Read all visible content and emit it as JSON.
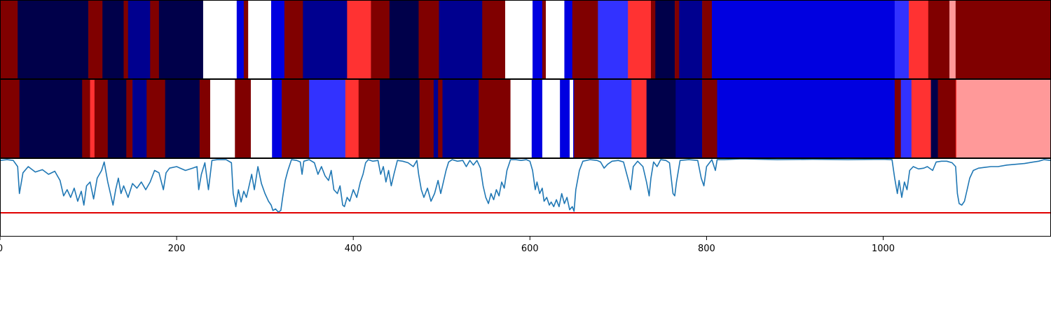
{
  "chart_data": [
    {
      "type": "heatmap",
      "name": "state-strip-top",
      "xlim": [
        0,
        1190
      ],
      "colors": {
        "white": "#ffffff",
        "navy": "#00004a",
        "darkblue": "#00008f",
        "blue": "#0000e0",
        "lightblue": "#3232ff",
        "red": "#ff3232",
        "darkred": "#800000",
        "pink": "#ff9999"
      },
      "segments": [
        [
          0,
          20,
          "darkred"
        ],
        [
          20,
          100,
          "navy"
        ],
        [
          100,
          116,
          "darkred"
        ],
        [
          116,
          140,
          "navy"
        ],
        [
          140,
          145,
          "darkred"
        ],
        [
          145,
          170,
          "darkblue"
        ],
        [
          170,
          180,
          "darkred"
        ],
        [
          180,
          230,
          "navy"
        ],
        [
          230,
          268,
          "white"
        ],
        [
          268,
          276,
          "blue"
        ],
        [
          276,
          281,
          "darkred"
        ],
        [
          281,
          307,
          "white"
        ],
        [
          307,
          322,
          "blue"
        ],
        [
          322,
          343,
          "darkred"
        ],
        [
          343,
          393,
          "darkblue"
        ],
        [
          393,
          420,
          "red"
        ],
        [
          420,
          441,
          "darkred"
        ],
        [
          441,
          474,
          "navy"
        ],
        [
          474,
          497,
          "darkred"
        ],
        [
          497,
          546,
          "darkblue"
        ],
        [
          546,
          572,
          "darkred"
        ],
        [
          572,
          603,
          "white"
        ],
        [
          603,
          614,
          "blue"
        ],
        [
          614,
          618,
          "darkred"
        ],
        [
          618,
          639,
          "white"
        ],
        [
          639,
          648,
          "blue"
        ],
        [
          648,
          677,
          "darkred"
        ],
        [
          677,
          711,
          "lightblue"
        ],
        [
          711,
          737,
          "red"
        ],
        [
          737,
          742,
          "darkred"
        ],
        [
          742,
          764,
          "navy"
        ],
        [
          764,
          769,
          "darkred"
        ],
        [
          769,
          795,
          "darkblue"
        ],
        [
          795,
          806,
          "darkred"
        ],
        [
          806,
          1013,
          "blue"
        ],
        [
          1013,
          1029,
          "lightblue"
        ],
        [
          1029,
          1051,
          "red"
        ],
        [
          1051,
          1075,
          "darkred"
        ],
        [
          1075,
          1082,
          "pink"
        ],
        [
          1082,
          1190,
          "darkred"
        ]
      ]
    },
    {
      "type": "heatmap",
      "name": "state-strip-bottom",
      "xlim": [
        0,
        1190
      ],
      "segments": [
        [
          0,
          22,
          "darkred"
        ],
        [
          22,
          93,
          "navy"
        ],
        [
          93,
          102,
          "darkred"
        ],
        [
          102,
          107,
          "red"
        ],
        [
          107,
          122,
          "darkred"
        ],
        [
          122,
          143,
          "navy"
        ],
        [
          143,
          150,
          "darkred"
        ],
        [
          150,
          166,
          "darkblue"
        ],
        [
          166,
          187,
          "darkred"
        ],
        [
          187,
          226,
          "navy"
        ],
        [
          226,
          238,
          "darkred"
        ],
        [
          238,
          266,
          "white"
        ],
        [
          266,
          284,
          "darkred"
        ],
        [
          284,
          308,
          "white"
        ],
        [
          308,
          319,
          "blue"
        ],
        [
          319,
          350,
          "darkred"
        ],
        [
          350,
          391,
          "lightblue"
        ],
        [
          391,
          406,
          "red"
        ],
        [
          406,
          430,
          "darkred"
        ],
        [
          430,
          445,
          "navy"
        ],
        [
          445,
          475,
          "navy"
        ],
        [
          475,
          491,
          "darkred"
        ],
        [
          491,
          496,
          "darkblue"
        ],
        [
          496,
          501,
          "darkred"
        ],
        [
          501,
          542,
          "darkblue"
        ],
        [
          542,
          578,
          "darkred"
        ],
        [
          578,
          602,
          "white"
        ],
        [
          602,
          614,
          "blue"
        ],
        [
          614,
          634,
          "white"
        ],
        [
          634,
          645,
          "blue"
        ],
        [
          645,
          649,
          "white"
        ],
        [
          649,
          650,
          "blue"
        ],
        [
          650,
          678,
          "darkred"
        ],
        [
          678,
          715,
          "lightblue"
        ],
        [
          715,
          732,
          "red"
        ],
        [
          732,
          765,
          "navy"
        ],
        [
          765,
          795,
          "darkblue"
        ],
        [
          795,
          812,
          "darkred"
        ],
        [
          812,
          1013,
          "blue"
        ],
        [
          1013,
          1020,
          "darkred"
        ],
        [
          1020,
          1032,
          "lightblue"
        ],
        [
          1032,
          1054,
          "red"
        ],
        [
          1054,
          1062,
          "navy"
        ],
        [
          1062,
          1082,
          "darkred"
        ],
        [
          1082,
          1083,
          "red"
        ],
        [
          1083,
          1190,
          "pink"
        ]
      ]
    },
    {
      "type": "line",
      "name": "signal",
      "xlim": [
        0,
        1190
      ],
      "ylim": [
        0,
        1
      ],
      "threshold": 0.3,
      "line_color": "#1f77b4",
      "threshold_color": "#e00000",
      "xticks": [
        0,
        200,
        400,
        600,
        800,
        1000
      ],
      "points": [
        [
          0,
          0.98
        ],
        [
          8,
          0.99
        ],
        [
          15,
          0.98
        ],
        [
          20,
          0.9
        ],
        [
          22,
          0.55
        ],
        [
          26,
          0.82
        ],
        [
          32,
          0.9
        ],
        [
          40,
          0.83
        ],
        [
          48,
          0.86
        ],
        [
          55,
          0.8
        ],
        [
          62,
          0.84
        ],
        [
          68,
          0.72
        ],
        [
          72,
          0.52
        ],
        [
          76,
          0.6
        ],
        [
          80,
          0.5
        ],
        [
          84,
          0.62
        ],
        [
          88,
          0.45
        ],
        [
          92,
          0.58
        ],
        [
          95,
          0.4
        ],
        [
          98,
          0.65
        ],
        [
          102,
          0.7
        ],
        [
          106,
          0.48
        ],
        [
          110,
          0.75
        ],
        [
          115,
          0.85
        ],
        [
          118,
          0.96
        ],
        [
          122,
          0.7
        ],
        [
          125,
          0.55
        ],
        [
          128,
          0.4
        ],
        [
          131,
          0.6
        ],
        [
          134,
          0.75
        ],
        [
          137,
          0.55
        ],
        [
          140,
          0.65
        ],
        [
          145,
          0.5
        ],
        [
          150,
          0.68
        ],
        [
          155,
          0.62
        ],
        [
          160,
          0.7
        ],
        [
          165,
          0.6
        ],
        [
          170,
          0.7
        ],
        [
          175,
          0.85
        ],
        [
          180,
          0.82
        ],
        [
          185,
          0.6
        ],
        [
          188,
          0.82
        ],
        [
          192,
          0.88
        ],
        [
          200,
          0.9
        ],
        [
          210,
          0.85
        ],
        [
          218,
          0.88
        ],
        [
          223,
          0.9
        ],
        [
          225,
          0.6
        ],
        [
          228,
          0.8
        ],
        [
          232,
          0.95
        ],
        [
          236,
          0.6
        ],
        [
          240,
          0.98
        ],
        [
          246,
          0.99
        ],
        [
          256,
          0.99
        ],
        [
          262,
          0.95
        ],
        [
          264,
          0.55
        ],
        [
          267,
          0.38
        ],
        [
          270,
          0.6
        ],
        [
          273,
          0.44
        ],
        [
          276,
          0.58
        ],
        [
          279,
          0.5
        ],
        [
          282,
          0.65
        ],
        [
          285,
          0.8
        ],
        [
          288,
          0.6
        ],
        [
          292,
          0.9
        ],
        [
          296,
          0.68
        ],
        [
          300,
          0.55
        ],
        [
          304,
          0.45
        ],
        [
          307,
          0.4
        ],
        [
          309,
          0.33
        ],
        [
          312,
          0.35
        ],
        [
          315,
          0.31
        ],
        [
          318,
          0.33
        ],
        [
          320,
          0.5
        ],
        [
          323,
          0.72
        ],
        [
          326,
          0.85
        ],
        [
          330,
          0.99
        ],
        [
          336,
          0.98
        ],
        [
          340,
          0.96
        ],
        [
          342,
          0.8
        ],
        [
          344,
          0.97
        ],
        [
          350,
          0.99
        ],
        [
          356,
          0.95
        ],
        [
          360,
          0.8
        ],
        [
          364,
          0.9
        ],
        [
          368,
          0.78
        ],
        [
          372,
          0.72
        ],
        [
          375,
          0.85
        ],
        [
          378,
          0.6
        ],
        [
          382,
          0.55
        ],
        [
          385,
          0.65
        ],
        [
          388,
          0.4
        ],
        [
          390,
          0.38
        ],
        [
          393,
          0.5
        ],
        [
          396,
          0.45
        ],
        [
          400,
          0.6
        ],
        [
          404,
          0.5
        ],
        [
          408,
          0.7
        ],
        [
          411,
          0.8
        ],
        [
          414,
          0.95
        ],
        [
          417,
          0.99
        ],
        [
          422,
          0.97
        ],
        [
          428,
          0.98
        ],
        [
          431,
          0.8
        ],
        [
          434,
          0.9
        ],
        [
          437,
          0.7
        ],
        [
          440,
          0.85
        ],
        [
          443,
          0.65
        ],
        [
          446,
          0.8
        ],
        [
          450,
          0.98
        ],
        [
          456,
          0.97
        ],
        [
          462,
          0.95
        ],
        [
          468,
          0.9
        ],
        [
          472,
          0.98
        ],
        [
          474,
          0.8
        ],
        [
          477,
          0.6
        ],
        [
          480,
          0.5
        ],
        [
          484,
          0.62
        ],
        [
          488,
          0.45
        ],
        [
          492,
          0.55
        ],
        [
          496,
          0.72
        ],
        [
          499,
          0.55
        ],
        [
          502,
          0.7
        ],
        [
          505,
          0.85
        ],
        [
          508,
          0.96
        ],
        [
          512,
          0.99
        ],
        [
          518,
          0.97
        ],
        [
          524,
          0.98
        ],
        [
          528,
          0.9
        ],
        [
          532,
          0.98
        ],
        [
          536,
          0.92
        ],
        [
          540,
          0.98
        ],
        [
          544,
          0.88
        ],
        [
          547,
          0.65
        ],
        [
          550,
          0.5
        ],
        [
          553,
          0.42
        ],
        [
          556,
          0.55
        ],
        [
          559,
          0.47
        ],
        [
          562,
          0.6
        ],
        [
          565,
          0.52
        ],
        [
          568,
          0.7
        ],
        [
          571,
          0.62
        ],
        [
          574,
          0.85
        ],
        [
          578,
          0.99
        ],
        [
          584,
          0.99
        ],
        [
          590,
          0.98
        ],
        [
          596,
          0.99
        ],
        [
          600,
          0.97
        ],
        [
          603,
          0.85
        ],
        [
          606,
          0.6
        ],
        [
          608,
          0.7
        ],
        [
          611,
          0.55
        ],
        [
          614,
          0.62
        ],
        [
          616,
          0.45
        ],
        [
          619,
          0.5
        ],
        [
          622,
          0.4
        ],
        [
          624,
          0.44
        ],
        [
          627,
          0.38
        ],
        [
          630,
          0.47
        ],
        [
          633,
          0.38
        ],
        [
          636,
          0.55
        ],
        [
          639,
          0.42
        ],
        [
          642,
          0.5
        ],
        [
          645,
          0.34
        ],
        [
          648,
          0.38
        ],
        [
          650,
          0.32
        ],
        [
          652,
          0.6
        ],
        [
          656,
          0.85
        ],
        [
          660,
          0.97
        ],
        [
          668,
          0.99
        ],
        [
          676,
          0.98
        ],
        [
          680,
          0.96
        ],
        [
          684,
          0.88
        ],
        [
          688,
          0.93
        ],
        [
          693,
          0.97
        ],
        [
          700,
          0.98
        ],
        [
          706,
          0.96
        ],
        [
          712,
          0.7
        ],
        [
          714,
          0.6
        ],
        [
          717,
          0.9
        ],
        [
          722,
          0.97
        ],
        [
          728,
          0.9
        ],
        [
          732,
          0.7
        ],
        [
          735,
          0.52
        ],
        [
          737,
          0.75
        ],
        [
          740,
          0.96
        ],
        [
          744,
          0.9
        ],
        [
          748,
          0.99
        ],
        [
          754,
          0.98
        ],
        [
          758,
          0.95
        ],
        [
          762,
          0.55
        ],
        [
          764,
          0.52
        ],
        [
          766,
          0.7
        ],
        [
          770,
          0.98
        ],
        [
          780,
          0.99
        ],
        [
          790,
          0.98
        ],
        [
          794,
          0.75
        ],
        [
          797,
          0.65
        ],
        [
          800,
          0.9
        ],
        [
          806,
          0.99
        ],
        [
          810,
          0.85
        ],
        [
          812,
          0.99
        ],
        [
          820,
          0.99
        ],
        [
          840,
          1.0
        ],
        [
          880,
          0.99
        ],
        [
          920,
          0.995
        ],
        [
          960,
          0.99
        ],
        [
          1000,
          0.995
        ],
        [
          1010,
          0.99
        ],
        [
          1013,
          0.75
        ],
        [
          1016,
          0.55
        ],
        [
          1018,
          0.72
        ],
        [
          1021,
          0.5
        ],
        [
          1024,
          0.7
        ],
        [
          1027,
          0.6
        ],
        [
          1030,
          0.85
        ],
        [
          1034,
          0.9
        ],
        [
          1040,
          0.87
        ],
        [
          1046,
          0.88
        ],
        [
          1050,
          0.9
        ],
        [
          1056,
          0.85
        ],
        [
          1060,
          0.96
        ],
        [
          1066,
          0.97
        ],
        [
          1072,
          0.97
        ],
        [
          1078,
          0.95
        ],
        [
          1082,
          0.9
        ],
        [
          1084,
          0.55
        ],
        [
          1086,
          0.42
        ],
        [
          1089,
          0.4
        ],
        [
          1092,
          0.45
        ],
        [
          1095,
          0.6
        ],
        [
          1098,
          0.75
        ],
        [
          1102,
          0.85
        ],
        [
          1108,
          0.88
        ],
        [
          1115,
          0.89
        ],
        [
          1122,
          0.9
        ],
        [
          1130,
          0.9
        ],
        [
          1140,
          0.92
        ],
        [
          1150,
          0.93
        ],
        [
          1160,
          0.94
        ],
        [
          1170,
          0.96
        ],
        [
          1176,
          0.97
        ],
        [
          1182,
          0.99
        ],
        [
          1190,
          0.98
        ]
      ]
    }
  ]
}
